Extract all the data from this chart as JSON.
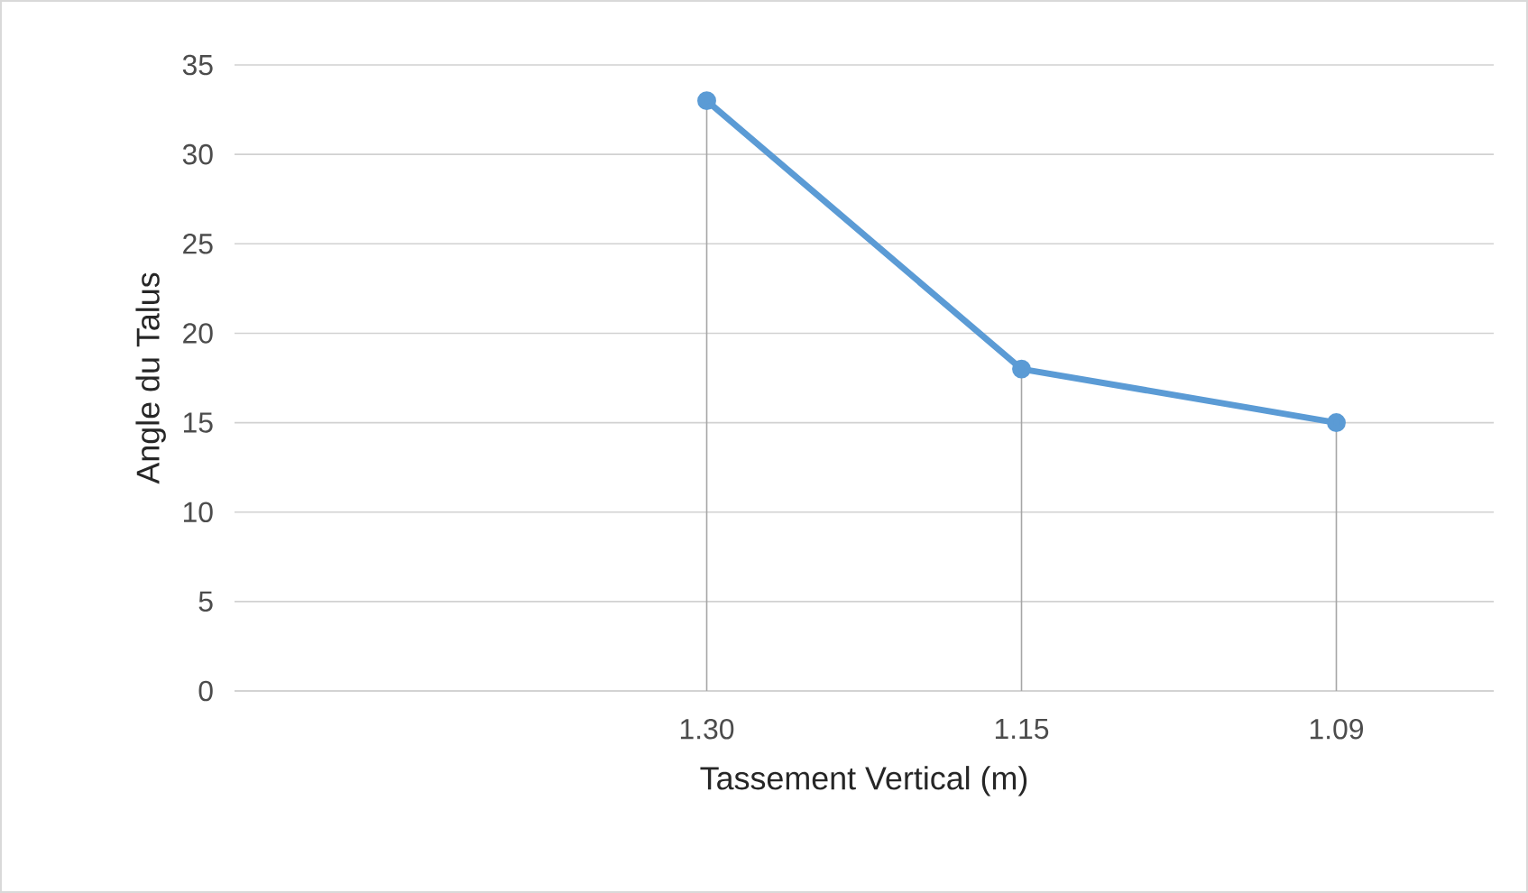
{
  "chart_data": {
    "type": "line",
    "xlabel": "Tassement Vertical (m)",
    "ylabel": "Angle du Talus",
    "categories": [
      null,
      "1.30",
      "1.15",
      "1.09"
    ],
    "series": [
      {
        "color": "#5b9bd5",
        "values": [
          null,
          33,
          18,
          15
        ],
        "errors": [
          null,
          [
            0,
            33
          ],
          [
            0,
            18
          ],
          [
            0,
            15
          ]
        ]
      }
    ],
    "ylim": [
      0,
      35
    ],
    "yticks": [
      0,
      5,
      10,
      15,
      20,
      25,
      30,
      35
    ],
    "grid": "y",
    "marker": "circle",
    "line_style": "solid",
    "legend": false
  }
}
